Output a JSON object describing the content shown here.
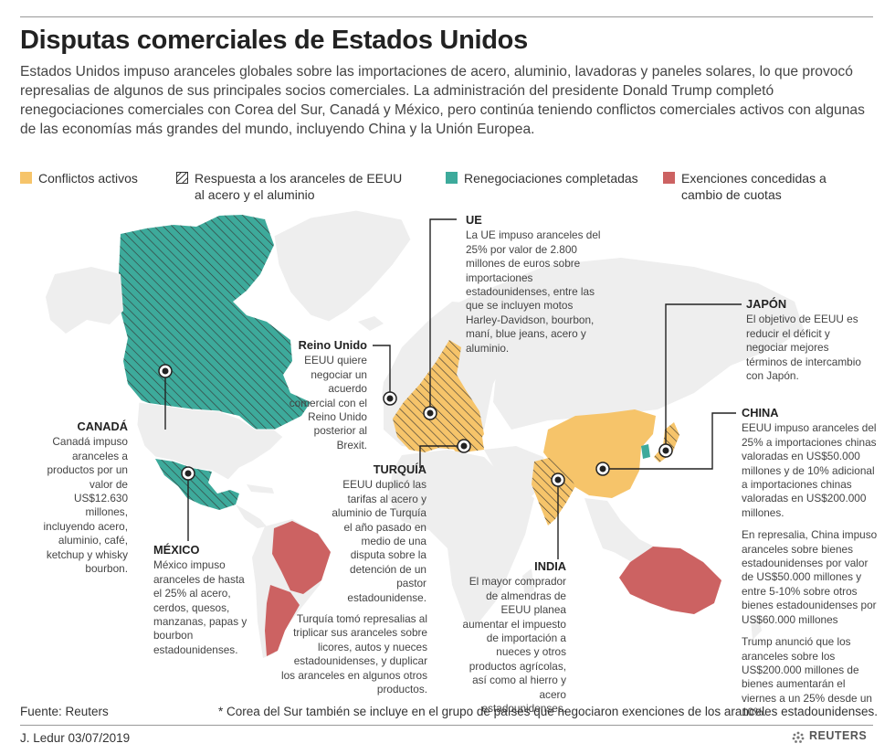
{
  "title": "Disputas comerciales de Estados Unidos",
  "intro": "Estados Unidos impuso aranceles globales sobre las importaciones de acero, aluminio, lavadoras y paneles solares, lo que provocó represalias de algunos de sus principales socios comerciales. La administración del presidente Donald Trump completó renegociaciones comerciales con Corea del Sur, Canadá y México, pero continúa teniendo conflictos comerciales activos con algunas de las economías más grandes del mundo, incluyendo China y la Unión Europea.",
  "legend": {
    "active": "Conflictos activos",
    "tariff_response": "Respuesta a los aranceles de EEUU al acero y el aluminio",
    "renegotiated": "Renegociaciones completadas",
    "exemptions": "Exenciones concedidas a cambio de cuotas"
  },
  "colors": {
    "active": "#f6c46a",
    "renegotiated": "#3daa9b",
    "exemptions": "#cc6262",
    "land": "#eeeeee",
    "hatch": "#333333"
  },
  "annotations": {
    "ue": {
      "name": "UE",
      "text": "La UE impuso aranceles del 25% por valor de 2.800 millones de euros sobre importaciones estadounidenses, entre las que se incluyen motos Harley-Davidson, bourbon, maní, blue jeans, acero y aluminio."
    },
    "japon": {
      "name": "JAPÓN",
      "text": "El objetivo de EEUU es reducir el déficit y negociar mejores términos de intercambio con Japón."
    },
    "reino_unido": {
      "name": "Reino Unido",
      "text": "EEUU quiere negociar un acuerdo comercial con el Reino Unido posterior al Brexit."
    },
    "canada": {
      "name": "CANADÁ",
      "text": "Canadá impuso aranceles a productos por un valor de US$12.630 millones, incluyendo acero, aluminio, café, ketchup y whisky bourbon."
    },
    "china": {
      "name": "CHINA",
      "text1": "EEUU impuso aranceles del 25% a importaciones chinas valoradas en US$50.000 millones y de 10% adicional a importaciones chinas valoradas en US$200.000 millones.",
      "text2": "En represalia, China impuso aranceles sobre bienes estadounidenses por valor de US$50.000 millones y entre 5-10% sobre otros bienes estadounidenses por US$60.000 millones",
      "text3": "Trump anunció que los aranceles sobre los US$200.000 millones de bienes aumentarán el viernes a un 25% desde un 10%."
    },
    "turquia": {
      "name": "TURQUÍA",
      "text1": "EEUU duplicó las tarifas al acero y aluminio de Turquía el año pasado en medio de una disputa sobre la detención de un pastor estadounidense.",
      "text2": "Turquía tomó represalias al triplicar sus aranceles sobre licores, autos y nueces estadounidenses, y duplicar los aranceles en algunos otros productos."
    },
    "mexico": {
      "name": "MÉXICO",
      "text": "México impuso aranceles de hasta el 25% al acero, cerdos, quesos, manzanas, papas y bourbon estadounidenses."
    },
    "india": {
      "name": "INDIA",
      "text": "El mayor comprador de almendras de EEUU planea aumentar el impuesto de importación a nueces y otros productos agrícolas, así como al hierro y acero estadounidenses."
    }
  },
  "source": "Fuente: Reuters",
  "footnote": "* Corea del Sur también se incluye en el grupo de países que negociaron exenciones de los aranceles estadounidenses.",
  "credit": "J. Ledur 03/07/2019",
  "logo": "REUTERS"
}
